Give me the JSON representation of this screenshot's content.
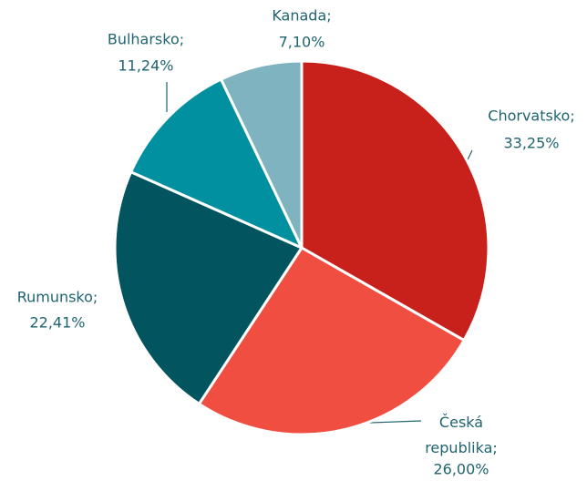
{
  "chart_data": {
    "type": "pie",
    "categories": [
      "Chorvatsko;",
      "Česká republika;",
      "Rumunsko;",
      "Bulharsko;",
      "Kanada;"
    ],
    "values": [
      33.25,
      26.0,
      22.41,
      11.24,
      7.1
    ],
    "value_labels": [
      "33,25%",
      "26,00%",
      "22,41%",
      "11,24%",
      "7,10%"
    ],
    "colors": [
      "#c8201a",
      "#f04e40",
      "#02545e",
      "#0090a0",
      "#7fb3c0"
    ]
  }
}
